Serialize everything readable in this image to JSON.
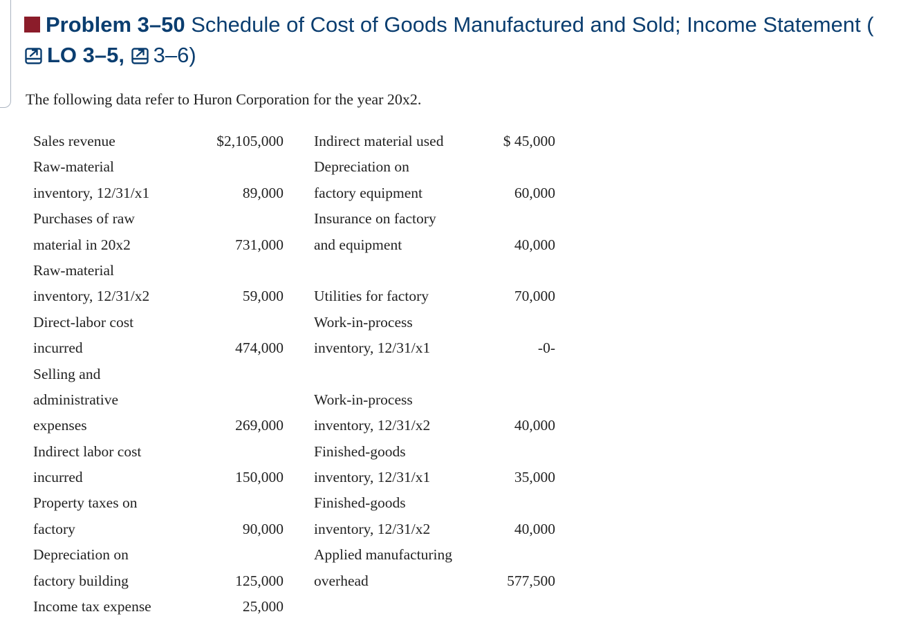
{
  "heading": {
    "problem_number": "Problem 3–50",
    "title": "Schedule of Cost of Goods Manufactured and Sold; Income Statement (",
    "lo_label": "LO 3–5,",
    "lo_second": "3–6)"
  },
  "intro": "The following data refer to Huron Corporation for the year 20x2.",
  "rows": [
    {
      "l_label": "Sales revenue",
      "l_value": "$2,105,000",
      "r_label": "Indirect material used",
      "r_value": "$ 45,000"
    },
    {
      "l_label": "Raw-material",
      "l_value": "",
      "r_label": "Depreciation on",
      "r_value": ""
    },
    {
      "l_label": "inventory, 12/31/x1",
      "l_value": "89,000",
      "r_label": "factory equipment",
      "r_value": "60,000"
    },
    {
      "l_label": "Purchases of raw",
      "l_value": "",
      "r_label": "Insurance on factory",
      "r_value": ""
    },
    {
      "l_label": "material in 20x2",
      "l_value": "731,000",
      "r_label": "and equipment",
      "r_value": "40,000"
    },
    {
      "l_label": "Raw-material",
      "l_value": "",
      "r_label": "",
      "r_value": ""
    },
    {
      "l_label": "inventory, 12/31/x2",
      "l_value": "59,000",
      "r_label": "Utilities for factory",
      "r_value": "70,000"
    },
    {
      "l_label": "Direct-labor cost",
      "l_value": "",
      "r_label": "Work-in-process",
      "r_value": ""
    },
    {
      "l_label": "incurred",
      "l_value": "474,000",
      "r_label": "inventory, 12/31/x1",
      "r_value": "-0-"
    },
    {
      "l_label": "Selling and",
      "l_value": "",
      "r_label": "",
      "r_value": ""
    },
    {
      "l_label": "administrative",
      "l_value": "",
      "r_label": "Work-in-process",
      "r_value": ""
    },
    {
      "l_label": "expenses",
      "l_value": "269,000",
      "r_label": "inventory, 12/31/x2",
      "r_value": "40,000"
    },
    {
      "l_label": "Indirect labor cost",
      "l_value": "",
      "r_label": "Finished-goods",
      "r_value": ""
    },
    {
      "l_label": "incurred",
      "l_value": "150,000",
      "r_label": "inventory, 12/31/x1",
      "r_value": "35,000"
    },
    {
      "l_label": "Property taxes on",
      "l_value": "",
      "r_label": "Finished-goods",
      "r_value": ""
    },
    {
      "l_label": "factory",
      "l_value": "90,000",
      "r_label": "inventory, 12/31/x2",
      "r_value": "40,000"
    },
    {
      "l_label": "Depreciation on",
      "l_value": "",
      "r_label": "Applied manufacturing",
      "r_value": ""
    },
    {
      "l_label": "factory building",
      "l_value": "125,000",
      "r_label": "overhead",
      "r_value": "577,500"
    },
    {
      "l_label": "Income tax expense",
      "l_value": "25,000",
      "r_label": "",
      "r_value": ""
    }
  ],
  "colors": {
    "heading": "#0b3e70",
    "square": "#8b1c2a",
    "text": "#222222"
  }
}
